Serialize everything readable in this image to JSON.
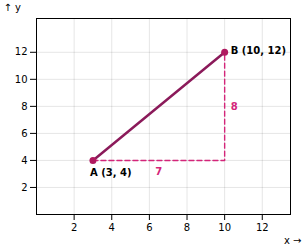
{
  "chart_data": {
    "type": "line",
    "xlabel": "x",
    "ylabel": "y",
    "xlim": [
      0,
      13.5
    ],
    "ylim": [
      0,
      14.5
    ],
    "xticks": [
      2,
      4,
      6,
      8,
      10,
      12
    ],
    "yticks": [
      2,
      4,
      6,
      8,
      10,
      12
    ],
    "grid": true,
    "series": [
      {
        "type": "line",
        "color": "#8b1a5a",
        "x": [
          3,
          10
        ],
        "values": [
          4,
          12
        ]
      },
      {
        "type": "line",
        "color": "#d4257a",
        "line_style": "dashed",
        "x": [
          3,
          10,
          10
        ],
        "values": [
          4,
          4,
          12
        ]
      },
      {
        "type": "scatter",
        "color": "#b01a60",
        "marker": "circle",
        "x": [
          3,
          10
        ],
        "values": [
          4,
          12
        ]
      }
    ],
    "annotations": [
      {
        "text": "A (3, 4)",
        "x": 3,
        "y": 4
      },
      {
        "text": "B (10, 12)",
        "x": 10,
        "y": 12
      },
      {
        "text": "7",
        "x": 6.5,
        "y": 4,
        "color": "#d4257a"
      },
      {
        "text": "8",
        "x": 10,
        "y": 8,
        "color": "#d4257a"
      }
    ]
  }
}
